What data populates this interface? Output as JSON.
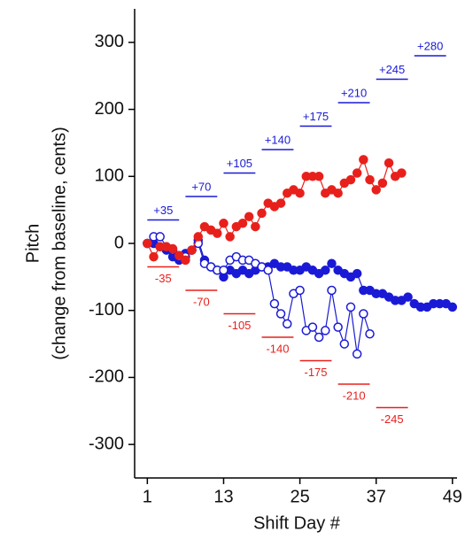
{
  "chart_data": {
    "type": "line",
    "xlabel": "Shift Day #",
    "ylabel": [
      "Pitch",
      "(change from baseline, cents)"
    ],
    "xlim": [
      -1,
      50
    ],
    "xticks": [
      1,
      13,
      25,
      37,
      49
    ],
    "ylim": [
      -350,
      350
    ],
    "yticks": [
      -300,
      -200,
      -100,
      0,
      100,
      200,
      300
    ],
    "series": [
      {
        "color": "#1a1ad6",
        "marker": "filled",
        "x": [
          1,
          2,
          3,
          4,
          5,
          6,
          7,
          8,
          9,
          10,
          11,
          12,
          13,
          14,
          15,
          16,
          17,
          18,
          19,
          20,
          21,
          22,
          23,
          24,
          25,
          26,
          27,
          28,
          29,
          30,
          31,
          32,
          33,
          34,
          35,
          36,
          37,
          38,
          39,
          40,
          41,
          42,
          43,
          44,
          45,
          46,
          47,
          48,
          49
        ],
        "values": [
          0,
          0,
          -5,
          -10,
          -20,
          -25,
          -15,
          -10,
          5,
          -25,
          -35,
          -40,
          -50,
          -40,
          -45,
          -40,
          -45,
          -40,
          -35,
          -35,
          -30,
          -35,
          -35,
          -40,
          -40,
          -35,
          -40,
          -45,
          -40,
          -30,
          -40,
          -45,
          -50,
          -45,
          -70,
          -70,
          -75,
          -75,
          -80,
          -85,
          -85,
          -80,
          -90,
          -95,
          -95,
          -90,
          -90,
          -90,
          -95
        ]
      },
      {
        "color": "#1a1ad6",
        "marker": "open",
        "x": [
          1,
          2,
          3,
          4,
          5,
          6,
          7,
          8,
          9,
          10,
          11,
          12,
          13,
          14,
          15,
          16,
          17,
          18,
          19,
          20,
          21,
          22,
          23,
          24,
          25,
          26,
          27,
          28,
          29,
          30,
          31,
          32,
          33,
          34,
          35,
          36
        ],
        "values": [
          0,
          10,
          10,
          -5,
          -10,
          -20,
          -20,
          -10,
          0,
          -30,
          -35,
          -40,
          -40,
          -25,
          -20,
          -25,
          -25,
          -30,
          -35,
          -40,
          -90,
          -105,
          -120,
          -75,
          -70,
          -130,
          -125,
          -140,
          -130,
          -70,
          -125,
          -150,
          -95,
          -165,
          -105,
          -135
        ]
      },
      {
        "color": "#e8201c",
        "marker": "filled",
        "x": [
          1,
          2,
          3,
          4,
          5,
          6,
          7,
          8,
          9,
          10,
          11,
          12,
          13,
          14,
          15,
          16,
          17,
          18,
          19,
          20,
          21,
          22,
          23,
          24,
          25,
          26,
          27,
          28,
          29,
          30,
          31,
          32,
          33,
          34,
          35,
          36,
          37,
          38,
          39,
          40,
          41
        ],
        "values": [
          0,
          -20,
          -5,
          -5,
          -8,
          -18,
          -25,
          -10,
          10,
          25,
          20,
          15,
          30,
          10,
          25,
          30,
          40,
          25,
          45,
          60,
          55,
          60,
          75,
          80,
          75,
          100,
          100,
          100,
          75,
          80,
          75,
          90,
          95,
          105,
          125,
          95,
          80,
          90,
          120,
          100,
          105
        ]
      }
    ],
    "shifts": [
      {
        "label": "+35",
        "value": 35,
        "start": 1,
        "end": 6,
        "color": "#1a1ad6"
      },
      {
        "label": "+70",
        "value": 70,
        "start": 7,
        "end": 12,
        "color": "#1a1ad6"
      },
      {
        "label": "+105",
        "value": 105,
        "start": 13,
        "end": 18,
        "color": "#1a1ad6"
      },
      {
        "label": "+140",
        "value": 140,
        "start": 19,
        "end": 24,
        "color": "#1a1ad6"
      },
      {
        "label": "+175",
        "value": 175,
        "start": 25,
        "end": 30,
        "color": "#1a1ad6"
      },
      {
        "label": "+210",
        "value": 210,
        "start": 31,
        "end": 36,
        "color": "#1a1ad6"
      },
      {
        "label": "+245",
        "value": 245,
        "start": 37,
        "end": 42,
        "color": "#1a1ad6"
      },
      {
        "label": "+280",
        "value": 280,
        "start": 43,
        "end": 48,
        "color": "#1a1ad6"
      },
      {
        "label": "-35",
        "value": -35,
        "start": 1,
        "end": 6,
        "color": "#e8201c"
      },
      {
        "label": "-70",
        "value": -70,
        "start": 7,
        "end": 12,
        "color": "#e8201c"
      },
      {
        "label": "-105",
        "value": -105,
        "start": 13,
        "end": 18,
        "color": "#e8201c"
      },
      {
        "label": "-140",
        "value": -140,
        "start": 19,
        "end": 24,
        "color": "#e8201c"
      },
      {
        "label": "-175",
        "value": -175,
        "start": 25,
        "end": 30,
        "color": "#e8201c"
      },
      {
        "label": "-210",
        "value": -210,
        "start": 31,
        "end": 36,
        "color": "#e8201c"
      },
      {
        "label": "-245",
        "value": -245,
        "start": 37,
        "end": 42,
        "color": "#e8201c"
      }
    ]
  }
}
